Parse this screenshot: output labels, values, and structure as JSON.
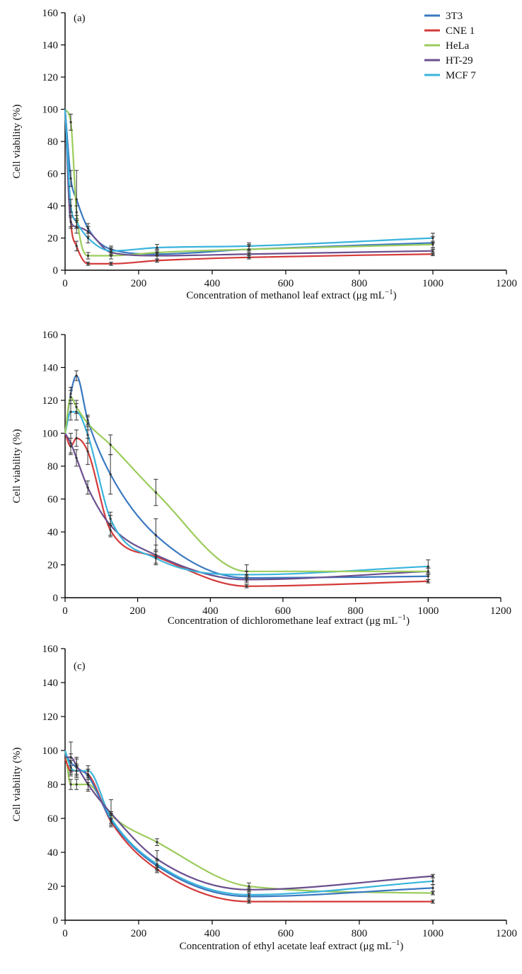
{
  "chart_data": [
    {
      "type": "line",
      "panel_label": "(a)",
      "title": "",
      "xlabel": "Concentration of methanol leaf extract (μg mL",
      "xlabel_sup": "−1",
      "xlabel_tail": ")",
      "ylabel": "Cell viability (%)",
      "xlim": [
        0,
        1200
      ],
      "ylim": [
        0,
        160
      ],
      "x_ticks": [
        0,
        200,
        400,
        600,
        800,
        1000,
        1200
      ],
      "y_ticks": [
        0,
        20,
        40,
        60,
        80,
        100,
        120,
        140,
        160
      ],
      "legend_position": "top-right",
      "grid": false,
      "x": [
        0,
        15.6,
        31.25,
        62.5,
        125,
        250,
        500,
        1000
      ],
      "series": [
        {
          "name": "3T3",
          "color": "#3a78c0",
          "values": [
            100,
            57,
            44,
            26,
            13,
            10,
            13,
            17
          ],
          "errors": [
            0,
            5,
            18,
            3,
            2,
            3,
            3,
            4
          ]
        },
        {
          "name": "CNE 1",
          "color": "#d43a3a",
          "values": [
            100,
            30,
            15,
            4,
            4,
            6,
            8,
            10
          ],
          "errors": [
            0,
            3,
            3,
            1,
            1,
            1,
            1,
            1
          ]
        },
        {
          "name": "HeLa",
          "color": "#9ccc5c",
          "values": [
            100,
            92,
            36,
            9,
            9,
            11,
            13,
            16
          ],
          "errors": [
            0,
            5,
            4,
            2,
            2,
            2,
            2,
            2
          ]
        },
        {
          "name": "HT-29",
          "color": "#6a4f8e",
          "values": [
            100,
            30,
            27,
            24,
            11,
            9,
            10,
            12
          ],
          "errors": [
            0,
            4,
            4,
            3,
            2,
            2,
            2,
            2
          ]
        },
        {
          "name": "MCF 7",
          "color": "#39b4dc",
          "values": [
            100,
            40,
            30,
            20,
            12,
            14,
            15,
            20
          ],
          "errors": [
            0,
            4,
            4,
            3,
            2,
            2,
            2,
            3
          ]
        }
      ]
    },
    {
      "type": "line",
      "panel_label": "",
      "title": "",
      "xlabel": "Concentration of dichloromethane leaf extract (μg mL",
      "xlabel_sup": "−1",
      "xlabel_tail": ")",
      "ylabel": "Cell viability (%)",
      "xlim": [
        0,
        1200
      ],
      "ylim": [
        0,
        160
      ],
      "x_ticks": [
        0,
        200,
        400,
        600,
        800,
        1000,
        1200
      ],
      "y_ticks": [
        0,
        20,
        40,
        60,
        80,
        100,
        120,
        140,
        160
      ],
      "grid": false,
      "x": [
        0,
        15.6,
        31.25,
        62.5,
        125,
        250,
        500,
        1000
      ],
      "series": [
        {
          "name": "3T3",
          "color": "#3a78c0",
          "values": [
            100,
            124,
            135,
            108,
            75,
            38,
            12,
            13
          ],
          "errors": [
            0,
            4,
            3,
            3,
            12,
            10,
            2,
            2
          ]
        },
        {
          "name": "CNE 1",
          "color": "#d43a3a",
          "values": [
            100,
            92,
            97,
            89,
            41,
            25,
            7,
            10
          ],
          "errors": [
            0,
            5,
            5,
            8,
            4,
            4,
            1,
            1
          ]
        },
        {
          "name": "HT-29",
          "color": "#6a4f8e",
          "values": [
            100,
            94,
            85,
            67,
            44,
            26,
            11,
            16
          ],
          "errors": [
            0,
            6,
            5,
            4,
            6,
            6,
            2,
            2
          ]
        },
        {
          "name": "MCF 7",
          "color": "#39b4dc",
          "values": [
            100,
            113,
            113,
            99,
            48,
            24,
            14,
            19
          ],
          "errors": [
            0,
            5,
            5,
            5,
            4,
            4,
            2,
            4
          ]
        },
        {
          "name": "HeLa",
          "color": "#9ccc5c",
          "values": [
            100,
            122,
            116,
            106,
            93,
            64,
            16,
            16
          ],
          "errors": [
            0,
            4,
            4,
            4,
            6,
            8,
            4,
            2
          ]
        }
      ]
    },
    {
      "type": "line",
      "panel_label": "(c)",
      "title": "",
      "xlabel": "Concentration of ethyl acetate leaf extract (μg mL",
      "xlabel_sup": "−1",
      "xlabel_tail": ")",
      "ylabel": "Cell viability (%)",
      "xlim": [
        0,
        1200
      ],
      "ylim": [
        0,
        160
      ],
      "x_ticks": [
        0,
        200,
        400,
        600,
        800,
        1000,
        1200
      ],
      "y_ticks": [
        0,
        20,
        40,
        60,
        80,
        100,
        120,
        140,
        160
      ],
      "grid": false,
      "x": [
        0,
        15.6,
        31.25,
        62.5,
        125,
        250,
        500,
        1000
      ],
      "series": [
        {
          "name": "HeLa",
          "color": "#9ccc5c",
          "values": [
            100,
            80,
            80,
            80,
            62,
            46,
            20,
            16
          ],
          "errors": [
            0,
            3,
            3,
            3,
            2,
            2,
            2,
            1
          ]
        },
        {
          "name": "CNE 1",
          "color": "#d43a3a",
          "values": [
            95,
            88,
            88,
            86,
            58,
            30,
            11,
            11
          ],
          "errors": [
            0,
            3,
            3,
            3,
            2,
            2,
            1,
            1
          ]
        },
        {
          "name": "3T3",
          "color": "#3a78c0",
          "values": [
            98,
            93,
            90,
            85,
            59,
            32,
            14,
            19
          ],
          "errors": [
            0,
            5,
            5,
            4,
            3,
            3,
            2,
            2
          ]
        },
        {
          "name": "MCF 7",
          "color": "#39b4dc",
          "values": [
            100,
            90,
            88,
            88,
            60,
            33,
            15,
            23
          ],
          "errors": [
            0,
            4,
            4,
            3,
            3,
            3,
            2,
            2
          ]
        },
        {
          "name": "HT-29",
          "color": "#6a4f8e",
          "values": [
            96,
            96,
            91,
            80,
            63,
            36,
            18,
            26
          ],
          "errors": [
            0,
            9,
            5,
            4,
            8,
            5,
            1,
            1
          ]
        }
      ]
    }
  ]
}
